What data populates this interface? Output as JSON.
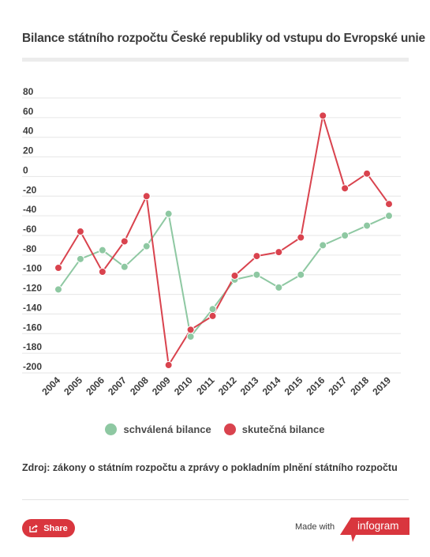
{
  "header": {
    "title": "Bilance státního rozpočtu České republiky od vstupu do Evropské unie"
  },
  "chart_data": {
    "type": "line",
    "title": "Bilance státního rozpočtu České republiky od vstupu do Evropské unie",
    "xlabel": "",
    "ylabel": "",
    "categories": [
      "2004",
      "2005",
      "2006",
      "2007",
      "2008",
      "2009",
      "2010",
      "2011",
      "2012",
      "2013",
      "2014",
      "2015",
      "2016",
      "2017",
      "2018",
      "2019"
    ],
    "yticks": [
      80,
      60,
      40,
      20,
      0,
      -20,
      -40,
      -60,
      -80,
      -100,
      -120,
      -140,
      -160,
      -180,
      -200
    ],
    "ylim": [
      -200,
      80
    ],
    "grid": true,
    "legend_position": "bottom",
    "series": [
      {
        "name": "schválená bilance",
        "color": "#8ec8a2",
        "values": [
          -115,
          -84,
          -75,
          -92,
          -71,
          -38,
          -163,
          -135,
          -105,
          -100,
          -113,
          -100,
          -70,
          -60,
          -50,
          -40
        ]
      },
      {
        "name": "skutečná bilance",
        "color": "#d9434e",
        "values": [
          -93,
          -56,
          -97,
          -66,
          -20,
          -192,
          -156,
          -142,
          -101,
          -81,
          -77,
          -62,
          62,
          -12,
          3,
          -28
        ]
      }
    ]
  },
  "legend": {
    "approved_label": "schválená bilance",
    "actual_label": "skutečná bilance"
  },
  "source_text": "Zdroj: zákony o státním rozpočtu a zprávy o pokladním plnění státního rozpočtu",
  "footer": {
    "share_label": "Share",
    "made_with_label": "Made with",
    "brand_label": "infogram"
  },
  "colors": {
    "approved": "#8ec8a2",
    "actual": "#d9434e",
    "brand": "#d9363e"
  },
  "icons": {
    "share": "share-icon"
  }
}
